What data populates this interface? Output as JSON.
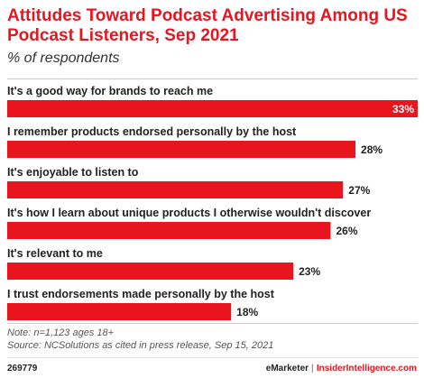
{
  "header": {
    "title": "Attitudes Toward Podcast Advertising Among US Podcast Listeners, Sep 2021",
    "subtitle": "% of respondents"
  },
  "chart_data": {
    "type": "bar",
    "orientation": "horizontal",
    "categories": [
      "It's a good way for brands to reach me",
      "I remember products endorsed personally by the host",
      "It's enjoyable to listen to",
      "It's how I learn about unique products I otherwise wouldn't discover",
      "It's relevant to me",
      "I trust endorsements made personally by the host"
    ],
    "values": [
      33,
      28,
      27,
      26,
      23,
      18
    ],
    "value_labels": [
      "33%",
      "28%",
      "27%",
      "26%",
      "23%",
      "18%"
    ],
    "unit": "%",
    "xlim": [
      0,
      33
    ],
    "bar_color": "#e8151e",
    "grid": false,
    "legend": "none"
  },
  "footer": {
    "note": "Note: n=1,123 ages 18+",
    "source": "Source: NCSolutions as cited in press release, Sep 15, 2021",
    "chart_id": "269779",
    "brand_left": "eMarketer",
    "brand_sep": "|",
    "brand_right": "InsiderIntelligence.com"
  },
  "colors": {
    "accent": "#e8151e",
    "text": "#222222",
    "muted": "#555555"
  }
}
